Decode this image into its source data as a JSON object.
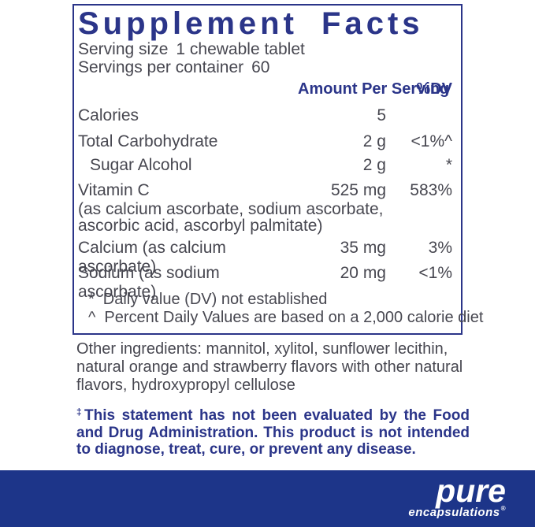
{
  "colors": {
    "brand_navy": "#2b3589",
    "bar_navy": "#1d3589",
    "body_text_gray": "#474750"
  },
  "panel": {
    "title": "Supplement Facts",
    "serving_lines": [
      {
        "label": "Serving size",
        "value": "1 chewable tablet"
      },
      {
        "label": "Servings per container",
        "value": "60"
      }
    ],
    "header": {
      "amount": "Amount Per Serving",
      "dv": "%DV"
    },
    "rows": [
      {
        "name": "Calories",
        "amount": "5",
        "dv": ""
      },
      {
        "name": "Total Carbohydrate",
        "amount": "2 g",
        "dv": "<1%^"
      },
      {
        "name": "Sugar Alcohol",
        "amount": "2 g",
        "dv": "*"
      },
      {
        "name": "Vitamin C",
        "amount": "525 mg",
        "dv": "583%",
        "note_lines": [
          "(as calcium ascorbate, sodium ascorbate,",
          "ascorbic acid, ascorbyl palmitate)"
        ]
      },
      {
        "name": "Calcium (as calcium ascorbate)",
        "amount": "35 mg",
        "dv": "3%"
      },
      {
        "name": "Sodium (as sodium ascorbate)",
        "amount": "20 mg",
        "dv": "<1%"
      }
    ],
    "footnotes": [
      {
        "symbol": "*",
        "text": "Daily value (DV) not established"
      },
      {
        "symbol": "^",
        "text": "Percent Daily Values are based on a 2,000 calorie diet"
      }
    ]
  },
  "other_ingredients": "Other ingredients: mannitol, xylitol, sunflower lecithin, natural orange and strawberry flavors with other natural flavors, hydroxypropyl cellulose",
  "disclaimer": {
    "symbol": "‡",
    "text": "This statement has not been evaluated by the Food and Drug Administration. This product is not intended to diagnose, treat, cure, or prevent any disease."
  },
  "logo": {
    "primary": "pure",
    "secondary": "encapsulations",
    "registered": "®"
  }
}
